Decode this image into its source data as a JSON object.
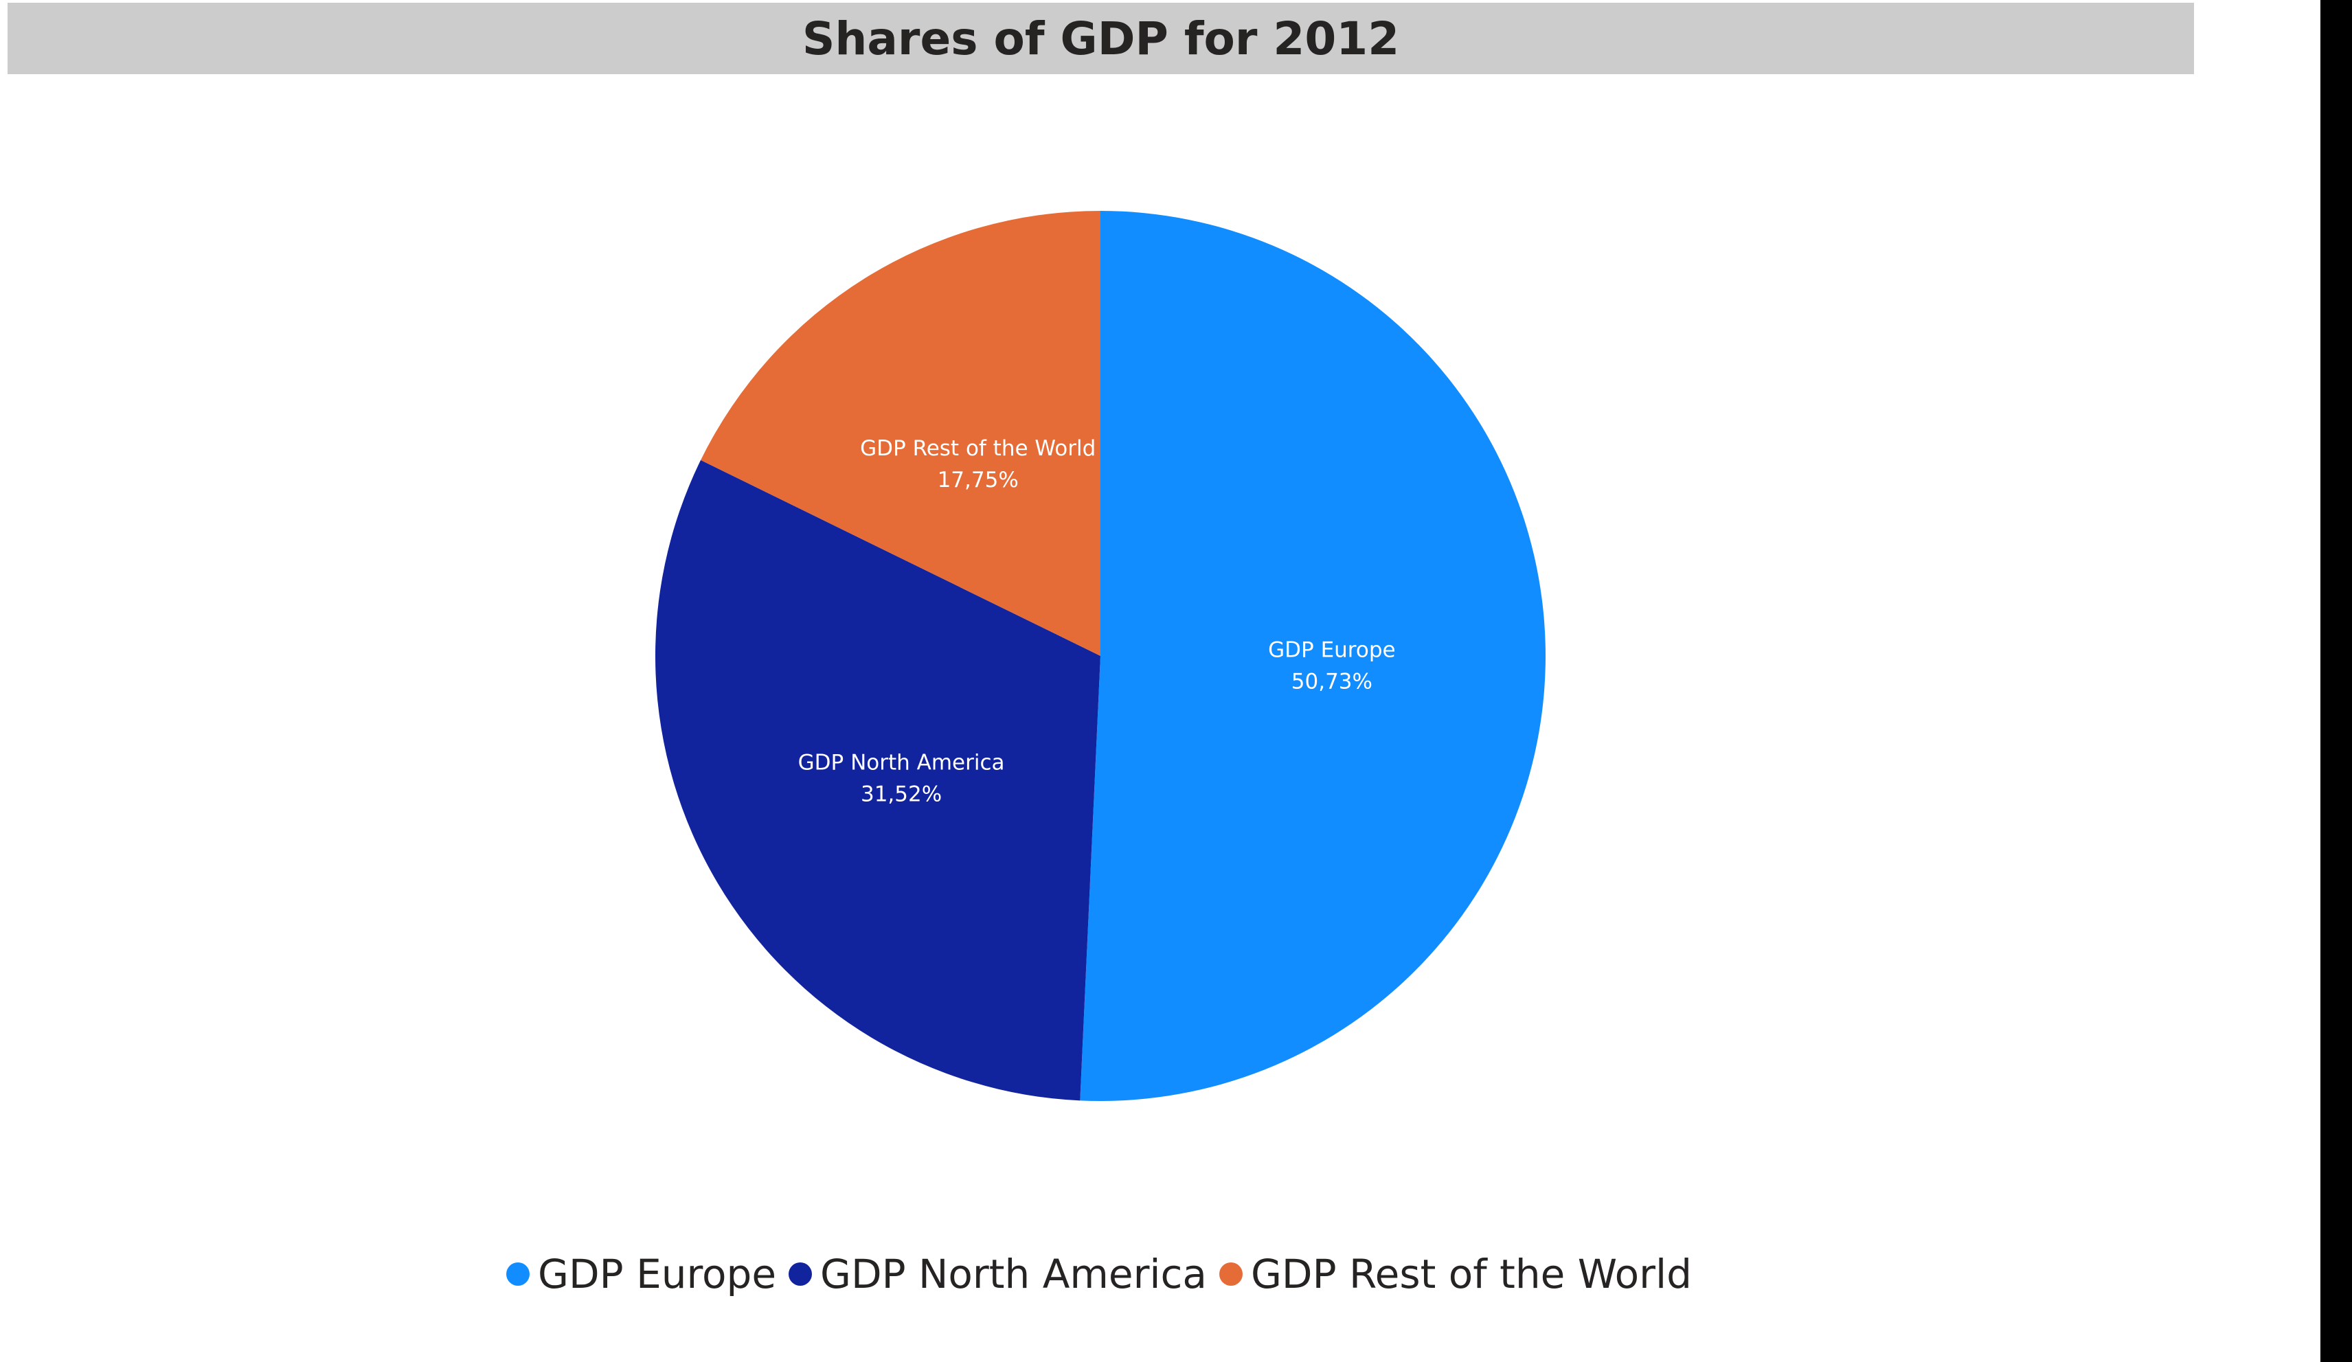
{
  "title": "Shares of GDP for 2012",
  "colors": {
    "europe": "#118dff",
    "north_america": "#12239e",
    "rest_of_world": "#e66c37"
  },
  "chart_data": {
    "type": "pie",
    "title": "Shares of GDP for 2012",
    "legend_position": "bottom-center",
    "slices": [
      {
        "label": "GDP Europe",
        "value": 50.73,
        "value_label": "50,73%",
        "color": "#118dff"
      },
      {
        "label": "GDP North America",
        "value": 31.52,
        "value_label": "31,52%",
        "color": "#12239e"
      },
      {
        "label": "GDP Rest of the World",
        "value": 17.75,
        "value_label": "17,75%",
        "color": "#e66c37"
      }
    ]
  },
  "legend": {
    "items": [
      {
        "label": "GDP Europe",
        "color": "#118dff"
      },
      {
        "label": "GDP North America",
        "color": "#12239e"
      },
      {
        "label": "GDP Rest of the World",
        "color": "#e66c37"
      }
    ]
  }
}
